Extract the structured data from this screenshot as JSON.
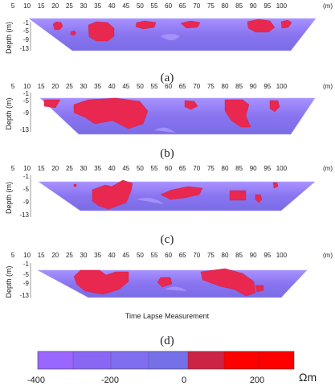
{
  "x_ticks": [
    "5",
    "10",
    "15",
    "20",
    "25",
    "30",
    "35",
    "40",
    "45",
    "50",
    "55",
    "60",
    "65",
    "70",
    "75",
    "80",
    "85",
    "90",
    "95",
    "100"
  ],
  "x_unit": "(m)",
  "y_ticks": [
    "-1",
    "-5",
    "-9",
    "-13"
  ],
  "y_axis_label": "Depth (m)",
  "panel_labels": [
    "(a)",
    "(b)",
    "(c)",
    "(d)"
  ],
  "caption": "Time Lapse Measurement",
  "colorbar": {
    "tick_labels": [
      "-400",
      "-200",
      "0",
      "200"
    ],
    "unit": "Ωm",
    "colors": [
      "#9966ff",
      "#8a66f5",
      "#7f6ef0",
      "#7570e8",
      "#cc2244",
      "#ff0000"
    ]
  },
  "colors": {
    "background_low": "#8a74f0",
    "anomaly_high": "#e8284f",
    "anomaly_light": "#b09cff"
  }
}
